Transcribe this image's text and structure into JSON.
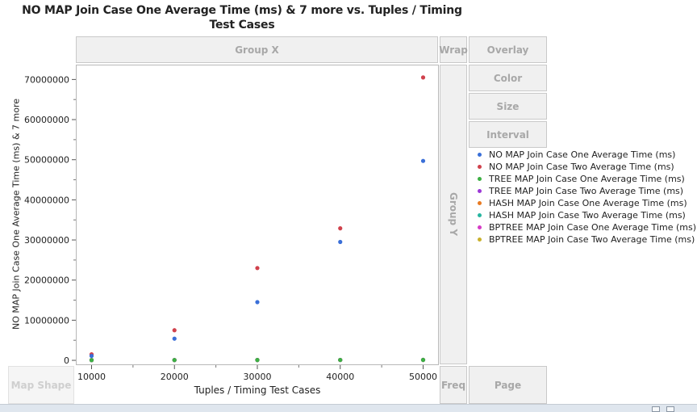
{
  "title": "NO MAP Join Case One Average Time (ms) & 7 more vs. Tuples / Timing Test Cases",
  "zones": {
    "group_x": "Group X",
    "group_y": "Group Y",
    "wrap": "Wrap",
    "overlay": "Overlay",
    "color": "Color",
    "size": "Size",
    "interval": "Interval",
    "map_shape": "Map Shape",
    "freq": "Freq",
    "page": "Page"
  },
  "chart_data": {
    "type": "scatter",
    "title": "NO MAP Join Case One Average Time (ms) & 7 more vs. Tuples / Timing Test Cases",
    "xlabel": "Tuples / Timing Test Cases",
    "ylabel": "NO MAP Join Case One Average Time (ms) & 7 more",
    "x": [
      10000,
      20000,
      30000,
      40000,
      50000
    ],
    "xlim": [
      8200,
      51800
    ],
    "ylim": [
      -1000000,
      73500000
    ],
    "xticks": [
      10000,
      20000,
      30000,
      40000,
      50000
    ],
    "yticks": [
      0,
      10000000,
      20000000,
      30000000,
      40000000,
      50000000,
      60000000,
      70000000
    ],
    "xtick_labels": [
      "10000",
      "20000",
      "30000",
      "40000",
      "50000"
    ],
    "ytick_labels": [
      "0",
      "10000000",
      "20000000",
      "30000000",
      "40000000",
      "50000000",
      "60000000",
      "70000000"
    ],
    "grid": false,
    "legend_position": "right",
    "series": [
      {
        "name": "NO MAP Join Case One Average Time (ms)",
        "color": "#3a6fd8",
        "values": [
          1100000,
          5400000,
          14500000,
          29500000,
          49700000
        ]
      },
      {
        "name": "NO MAP Join Case Two Average Time (ms)",
        "color": "#d0414c",
        "values": [
          1500000,
          7500000,
          23000000,
          32900000,
          70500000
        ]
      },
      {
        "name": "TREE MAP Join Case One Average Time (ms)",
        "color": "#3cb043",
        "values": [
          60000,
          70000,
          80000,
          90000,
          100000
        ]
      },
      {
        "name": "TREE MAP Join Case Two Average Time (ms)",
        "color": "#9b38d6",
        "values": [
          60000,
          70000,
          80000,
          90000,
          100000
        ]
      },
      {
        "name": "HASH MAP Join Case One Average Time (ms)",
        "color": "#e87a22",
        "values": [
          60000,
          70000,
          80000,
          90000,
          100000
        ]
      },
      {
        "name": "HASH MAP Join Case Two Average Time (ms)",
        "color": "#26b5a0",
        "values": [
          60000,
          70000,
          80000,
          90000,
          100000
        ]
      },
      {
        "name": "BPTREE MAP Join Case One Average Time (ms)",
        "color": "#d63bc6",
        "values": [
          60000,
          70000,
          80000,
          90000,
          100000
        ]
      },
      {
        "name": "BPTREE MAP Join Case Two Average Time (ms)",
        "color": "#c9b12c",
        "values": [
          60000,
          70000,
          80000,
          90000,
          100000
        ]
      }
    ]
  }
}
